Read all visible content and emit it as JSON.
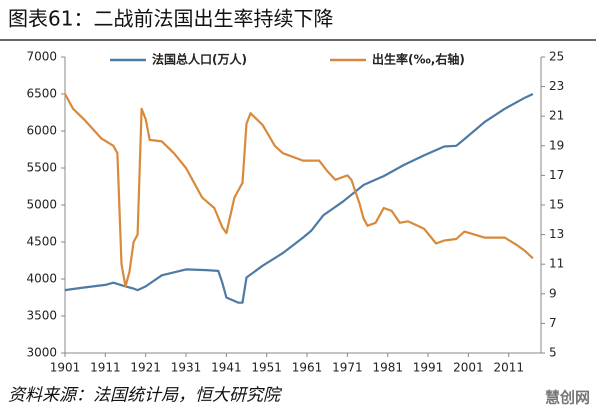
{
  "chart_data": {
    "type": "line",
    "title": "图表61：二战前法国出生率持续下降",
    "source": "资料来源：法国统计局，恒大研究院",
    "watermark": "慧创网",
    "xlim": [
      1901,
      2019
    ],
    "xticks": [
      1901,
      1911,
      1921,
      1931,
      1941,
      1951,
      1961,
      1971,
      1981,
      1991,
      2001,
      2011
    ],
    "ylim": [
      3000,
      7000
    ],
    "yticks": [
      3000,
      3500,
      4000,
      4500,
      5000,
      5500,
      6000,
      6500,
      7000
    ],
    "y2lim": [
      5,
      25
    ],
    "y2ticks": [
      5,
      7,
      9,
      11,
      13,
      15,
      17,
      19,
      21,
      23,
      25
    ],
    "grid": false,
    "legend": "top",
    "series": [
      {
        "name": "法国总人口(万人)",
        "color": "#4f7aa3",
        "x": [
          1901,
          1905,
          1911,
          1913,
          1916,
          1918,
          1919,
          1921,
          1925,
          1931,
          1936,
          1939,
          1940,
          1941,
          1944,
          1945,
          1946,
          1950,
          1955,
          1960,
          1962,
          1965,
          1970,
          1975,
          1980,
          1985,
          1990,
          1995,
          1998,
          2000,
          2005,
          2010,
          2015,
          2017
        ],
        "values": [
          3850,
          3880,
          3920,
          3950,
          3900,
          3870,
          3850,
          3900,
          4050,
          4130,
          4120,
          4110,
          3950,
          3750,
          3680,
          3680,
          4020,
          4180,
          4350,
          4560,
          4650,
          4860,
          5050,
          5270,
          5390,
          5540,
          5670,
          5790,
          5800,
          5890,
          6120,
          6300,
          6450,
          6500
        ]
      },
      {
        "name": "出生率(‰,右轴)",
        "color": "#d9893b",
        "axis": "y2",
        "x": [
          1901,
          1903,
          1906,
          1910,
          1913,
          1914,
          1915,
          1916,
          1917,
          1918,
          1919,
          1920,
          1921,
          1922,
          1925,
          1928,
          1931,
          1933,
          1935,
          1938,
          1940,
          1941,
          1942,
          1943,
          1945,
          1946,
          1947,
          1950,
          1953,
          1955,
          1960,
          1964,
          1966,
          1968,
          1971,
          1972,
          1974,
          1975,
          1976,
          1978,
          1980,
          1982,
          1984,
          1986,
          1990,
          1993,
          1995,
          1998,
          2000,
          2005,
          2010,
          2013,
          2015,
          2017
        ],
        "values": [
          22.5,
          21.5,
          20.7,
          19.5,
          19.0,
          18.5,
          11.0,
          9.5,
          10.5,
          12.5,
          13.0,
          21.5,
          20.8,
          19.4,
          19.3,
          18.5,
          17.5,
          16.5,
          15.5,
          14.8,
          13.5,
          13.1,
          14.3,
          15.5,
          16.5,
          20.5,
          21.2,
          20.4,
          19.0,
          18.5,
          18.0,
          18.0,
          17.3,
          16.7,
          17.0,
          16.7,
          15.1,
          14.1,
          13.6,
          13.8,
          14.8,
          14.6,
          13.8,
          13.9,
          13.4,
          12.4,
          12.6,
          12.7,
          13.2,
          12.8,
          12.8,
          12.3,
          11.9,
          11.4
        ]
      }
    ]
  }
}
